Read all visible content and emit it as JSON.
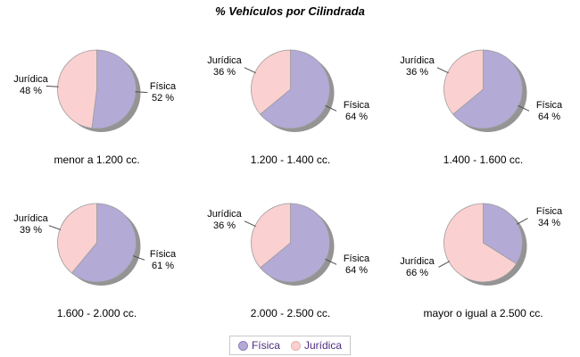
{
  "chart_data": {
    "type": "pie",
    "title": "% Vehículos por Cilindrada",
    "layout": "2 rows x 3 columns of pies",
    "start_angle_deg": -90,
    "direction": "clockwise",
    "legend_position": "bottom-center",
    "label_suffix": " %",
    "series": [
      {
        "name": "Física",
        "color": "#B4AAD6",
        "dot_border": "#8C80BD"
      },
      {
        "name": "Jurídica",
        "color": "#FAD0D0",
        "dot_border": "#E8AFAF"
      }
    ],
    "pies": [
      {
        "category": "menor a 1.200 cc.",
        "values": [
          52,
          48
        ]
      },
      {
        "category": "1.200 - 1.400 cc.",
        "values": [
          64,
          36
        ]
      },
      {
        "category": "1.400 - 1.600 cc.",
        "values": [
          64,
          36
        ]
      },
      {
        "category": "1.600 - 2.000 cc.",
        "values": [
          61,
          39
        ]
      },
      {
        "category": "2.000 - 2.500 cc.",
        "values": [
          64,
          36
        ]
      },
      {
        "category": "mayor o igual a 2.500 cc.",
        "values": [
          34,
          66
        ]
      }
    ]
  },
  "colors": {
    "background": "#FFFFFF",
    "title_text": "#000000",
    "label_text": "#000000",
    "shadow": "#949494",
    "slice_stroke": "#9C9C9C",
    "leader_line": "#4D4D4D",
    "legend_text": "#4F2D7F",
    "legend_border": "#C8C8C8"
  }
}
